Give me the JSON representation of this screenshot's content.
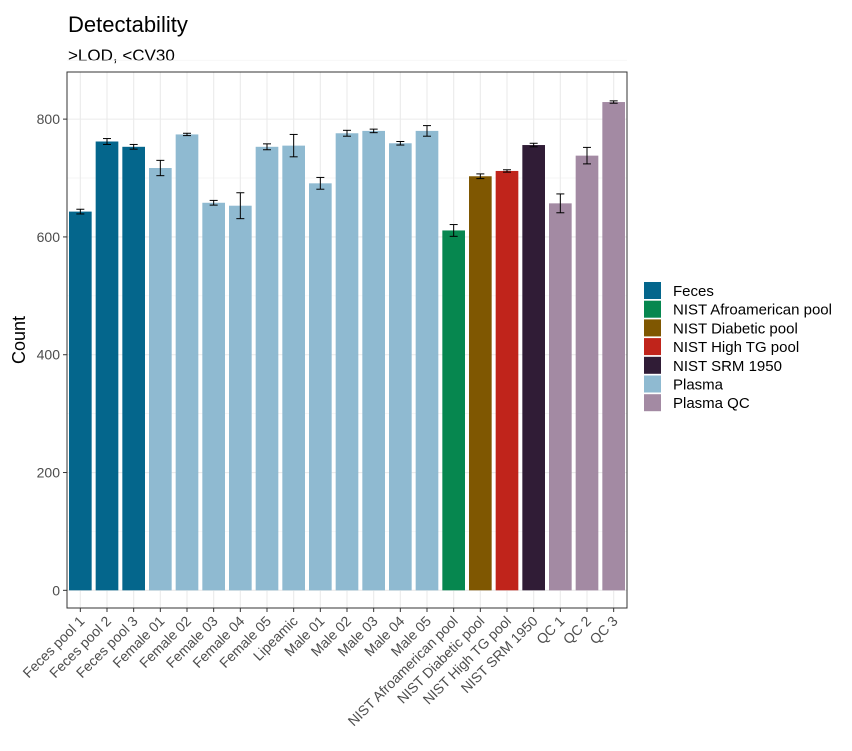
{
  "chart_data": {
    "type": "bar",
    "title": "Detectability",
    "subtitle": ">LOD, <CV30",
    "xlabel": "",
    "ylabel": "Count",
    "ylim": [
      -30,
      880
    ],
    "yticks": [
      0,
      200,
      400,
      600,
      800
    ],
    "grid": true,
    "legend_position": "right",
    "categories": [
      "Feces pool 1",
      "Feces pool 2",
      "Feces pool 3",
      "Female 01",
      "Female 02",
      "Female 03",
      "Female 04",
      "Female 05",
      "Lipeamic",
      "Male 01",
      "Male 02",
      "Male 03",
      "Male 04",
      "Male 05",
      "NIST Afroamerican pool",
      "NIST Diabetic pool",
      "NIST High TG pool",
      "NIST SRM 1950",
      "QC 1",
      "QC 2",
      "QC 3"
    ],
    "values": [
      643,
      762,
      753,
      717,
      774,
      658,
      653,
      753,
      755,
      691,
      776,
      780,
      759,
      780,
      611,
      703,
      712,
      756,
      657,
      738,
      829
    ],
    "errors": [
      4,
      5,
      4,
      13,
      2,
      4,
      22,
      5,
      19,
      10,
      5,
      3,
      3,
      9,
      10,
      4,
      2,
      3,
      16,
      14,
      2
    ],
    "groups": [
      "Feces",
      "Feces",
      "Feces",
      "Plasma",
      "Plasma",
      "Plasma",
      "Plasma",
      "Plasma",
      "Plasma",
      "Plasma",
      "Plasma",
      "Plasma",
      "Plasma",
      "Plasma",
      "NIST Afroamerican pool",
      "NIST Diabetic pool",
      "NIST High TG pool",
      "NIST SRM 1950",
      "Plasma QC",
      "Plasma QC",
      "Plasma QC"
    ],
    "legend": [
      {
        "name": "Feces",
        "color": "#04668c"
      },
      {
        "name": "NIST Afroamerican pool",
        "color": "#06874f"
      },
      {
        "name": "NIST Diabetic pool",
        "color": "#7f5701"
      },
      {
        "name": "NIST High TG pool",
        "color": "#c0241b"
      },
      {
        "name": "NIST SRM 1950",
        "color": "#301c36"
      },
      {
        "name": "Plasma",
        "color": "#8fbad1"
      },
      {
        "name": "Plasma QC",
        "color": "#a38aa3"
      }
    ]
  }
}
